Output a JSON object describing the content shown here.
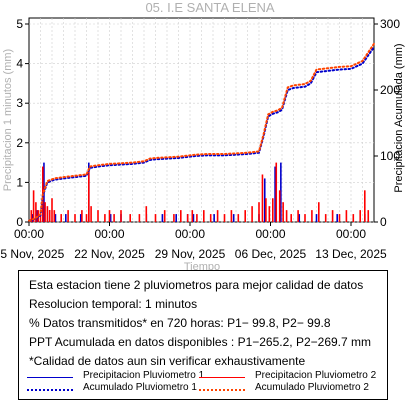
{
  "chart_data": {
    "type": "line",
    "title": "05. I.E SANTA ELENA",
    "xlabel": "Tiempo",
    "ylabel_left": "Precipitacion 1 minutos (mm)",
    "ylabel_right": "Precipitacion Acumulada (mm)",
    "x_range": [
      "2025-11-15",
      "2025-12-15"
    ],
    "ylim_left": [
      0,
      5
    ],
    "ylim_right": [
      0,
      300
    ],
    "yticks_left": [
      "0",
      "1",
      "2",
      "3",
      "4",
      "5"
    ],
    "yticks_right": [
      "0",
      "100",
      "200",
      "300"
    ],
    "x_ticks": [
      {
        "time": "00:00",
        "date": "15 Nov, 2025",
        "day": 0
      },
      {
        "time": "00:00",
        "date": "22 Nov, 2025",
        "day": 7
      },
      {
        "time": "00:00",
        "date": "29 Nov, 2025",
        "day": 14
      },
      {
        "time": "00:00",
        "date": "06 Dec, 2025",
        "day": 21
      },
      {
        "time": "00:00",
        "date": "13 Dec, 2025",
        "day": 28
      }
    ],
    "series": [
      {
        "name": "Precipitacion Pluviometro 1",
        "axis": "left",
        "color": "#0000cc",
        "x_day": [
          0.3,
          0.7,
          1.3,
          1.8,
          2.3,
          3.2,
          4.5,
          5.2,
          7.1,
          8.0,
          10.2,
          11.6,
          12.8,
          13.8,
          14.3,
          16.1,
          17.8,
          20.0,
          20.5,
          21.4,
          21.9,
          23.5,
          25.0,
          26.8,
          29.2
        ],
        "values": [
          0.2,
          0.3,
          1.5,
          0.3,
          0.2,
          0.2,
          0.2,
          1.5,
          0.2,
          0.2,
          0.2,
          0.2,
          0.2,
          0.2,
          0.2,
          0.2,
          0.2,
          0.2,
          1.1,
          1.4,
          1.5,
          0.2,
          0.2,
          0.2,
          0.2
        ]
      },
      {
        "name": "Precipitacion Pluviometro 2",
        "axis": "left",
        "color": "#ff0000",
        "x_day": [
          0.2,
          0.4,
          0.6,
          0.8,
          1.0,
          1.2,
          1.4,
          1.6,
          1.8,
          2.0,
          2.2,
          2.8,
          3.4,
          4.0,
          4.6,
          5.0,
          5.2,
          5.4,
          6.0,
          6.6,
          7.0,
          7.4,
          8.0,
          8.8,
          9.6,
          10.2,
          11.0,
          11.8,
          12.6,
          13.2,
          13.8,
          14.2,
          14.6,
          15.2,
          15.8,
          16.4,
          17.0,
          17.6,
          18.2,
          18.8,
          19.4,
          20.0,
          20.3,
          20.6,
          20.9,
          21.2,
          21.5,
          21.8,
          22.1,
          22.4,
          22.8,
          23.4,
          24.0,
          24.6,
          25.2,
          25.8,
          26.4,
          27.0,
          27.6,
          28.2,
          28.8,
          29.2,
          29.5
        ],
        "values": [
          0.3,
          0.8,
          0.5,
          0.3,
          0.3,
          1.4,
          0.5,
          0.4,
          0.3,
          0.6,
          0.3,
          0.2,
          0.3,
          0.2,
          0.3,
          0.2,
          1.3,
          0.4,
          0.3,
          0.2,
          0.3,
          0.2,
          0.3,
          0.2,
          0.2,
          0.4,
          0.2,
          0.3,
          0.2,
          0.3,
          0.2,
          0.3,
          0.2,
          0.3,
          0.2,
          0.3,
          0.2,
          0.3,
          0.2,
          0.3,
          0.4,
          0.5,
          1.2,
          0.6,
          0.4,
          0.6,
          1.5,
          0.8,
          0.5,
          0.3,
          0.2,
          0.3,
          0.2,
          0.3,
          0.5,
          0.2,
          0.3,
          0.2,
          0.3,
          0.2,
          0.3,
          0.8,
          0.3
        ]
      },
      {
        "name": "Acumulado Pluviometro 1",
        "axis": "right",
        "color": "#0000cc",
        "style": "dotted",
        "x_day": [
          0,
          0.6,
          1.0,
          1.2,
          1.6,
          2.2,
          3.0,
          4.0,
          5.0,
          5.3,
          6.0,
          7.0,
          8.0,
          9.0,
          10.0,
          10.5,
          11.0,
          12.0,
          13.0,
          14.0,
          14.5,
          15.5,
          17.0,
          18.0,
          19.0,
          20.0,
          20.4,
          20.8,
          21.2,
          21.6,
          22.0,
          22.5,
          23.0,
          24.0,
          24.5,
          25.0,
          26.0,
          27.0,
          28.0,
          29.0,
          30.0
        ],
        "values": [
          2,
          5,
          10,
          40,
          60,
          64,
          66,
          68,
          70,
          82,
          84,
          86,
          87,
          88,
          90,
          94,
          95,
          96,
          97,
          99,
          100,
          101,
          101,
          102,
          103,
          105,
          130,
          160,
          164,
          166,
          170,
          200,
          203,
          205,
          210,
          227,
          229,
          231,
          232,
          240,
          265
        ]
      },
      {
        "name": "Acumulado Pluviometro 2",
        "axis": "right",
        "color": "#ff4400",
        "style": "dotted",
        "x_day": [
          0,
          0.6,
          1.0,
          1.2,
          1.6,
          2.2,
          3.0,
          4.0,
          5.0,
          5.3,
          6.0,
          7.0,
          8.0,
          9.0,
          10.0,
          10.5,
          11.0,
          12.0,
          13.0,
          14.0,
          14.5,
          15.5,
          17.0,
          18.0,
          19.0,
          20.0,
          20.4,
          20.8,
          21.2,
          21.6,
          22.0,
          22.5,
          23.0,
          24.0,
          24.5,
          25.0,
          26.0,
          27.0,
          28.0,
          29.0,
          30.0
        ],
        "values": [
          2,
          6,
          12,
          42,
          62,
          66,
          68,
          70,
          72,
          84,
          86,
          88,
          89,
          90,
          92,
          96,
          97,
          98,
          99,
          101,
          102,
          103,
          103,
          104,
          105,
          107,
          133,
          163,
          167,
          169,
          173,
          204,
          207,
          209,
          214,
          231,
          233,
          235,
          236,
          244,
          270
        ]
      }
    ]
  },
  "info": {
    "lines": [
      "Esta estacion tiene 2 pluviometros para mejor calidad de datos",
      "Resolucion temporal: 1 minutos",
      "% Datos transmitidos* en 720 horas: P1− 99.8, P2− 99.8",
      "PPT Acumulada en datos disponibles : P1−265.2, P2−269.7 mm",
      "*Calidad de datos aun sin verificar exhaustivamente"
    ]
  },
  "legend": [
    {
      "label": "Precipitacion Pluviometro 1",
      "color": "#0000cc",
      "style": "solid"
    },
    {
      "label": "Precipitacion Pluviometro 2",
      "color": "#ff0000",
      "style": "solid"
    },
    {
      "label": "Acumulado Pluviometro 1",
      "color": "#0000cc",
      "style": "dotted"
    },
    {
      "label": "Acumulado Pluviometro 2",
      "color": "#ff4400",
      "style": "dotted"
    }
  ]
}
